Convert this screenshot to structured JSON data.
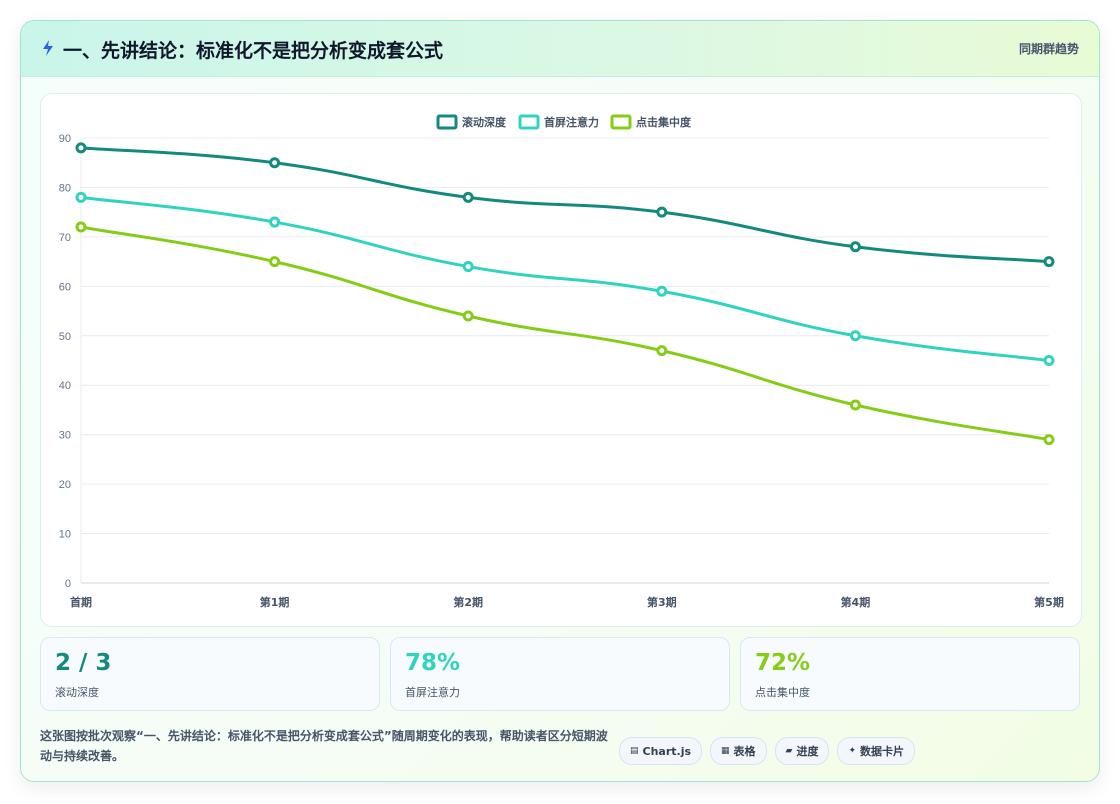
{
  "header": {
    "title": "一、先讲结论：标准化不是把分析变成套公式",
    "tag": "同期群趋势"
  },
  "chart_data": {
    "type": "line",
    "categories": [
      "首期",
      "第1期",
      "第2期",
      "第3期",
      "第4期",
      "第5期"
    ],
    "series": [
      {
        "name": "滚动深度",
        "values": [
          88,
          85,
          78,
          75,
          68,
          65
        ],
        "color": "#138a7d"
      },
      {
        "name": "首屏注意力",
        "values": [
          78,
          73,
          64,
          59,
          50,
          45
        ],
        "color": "#2fd3c0"
      },
      {
        "name": "点击集中度",
        "values": [
          72,
          65,
          54,
          47,
          36,
          29
        ],
        "color": "#84cc16"
      }
    ],
    "ylim": [
      0,
      90
    ],
    "yticks": [
      0,
      10,
      20,
      30,
      40,
      50,
      60,
      70,
      80,
      90
    ],
    "grid": true,
    "legend": "top-center"
  },
  "kpis": [
    {
      "value": "2 / 3",
      "label": "滚动深度",
      "color": "#138a7d"
    },
    {
      "value": "78%",
      "label": "首屏注意力",
      "color": "#2fd3c0"
    },
    {
      "value": "72%",
      "label": "点击集中度",
      "color": "#84cc16"
    }
  ],
  "footer": {
    "note": "这张图按批次观察“一、先讲结论：标准化不是把分析变成套公式”随周期变化的表现，帮助读者区分短期波动与持续改善。",
    "chips": [
      {
        "icon": "chart-icon",
        "label": "Chart.js"
      },
      {
        "icon": "table-icon",
        "label": "表格"
      },
      {
        "icon": "progress-icon",
        "label": "进度"
      },
      {
        "icon": "sparkle-icon",
        "label": "数据卡片"
      }
    ]
  }
}
